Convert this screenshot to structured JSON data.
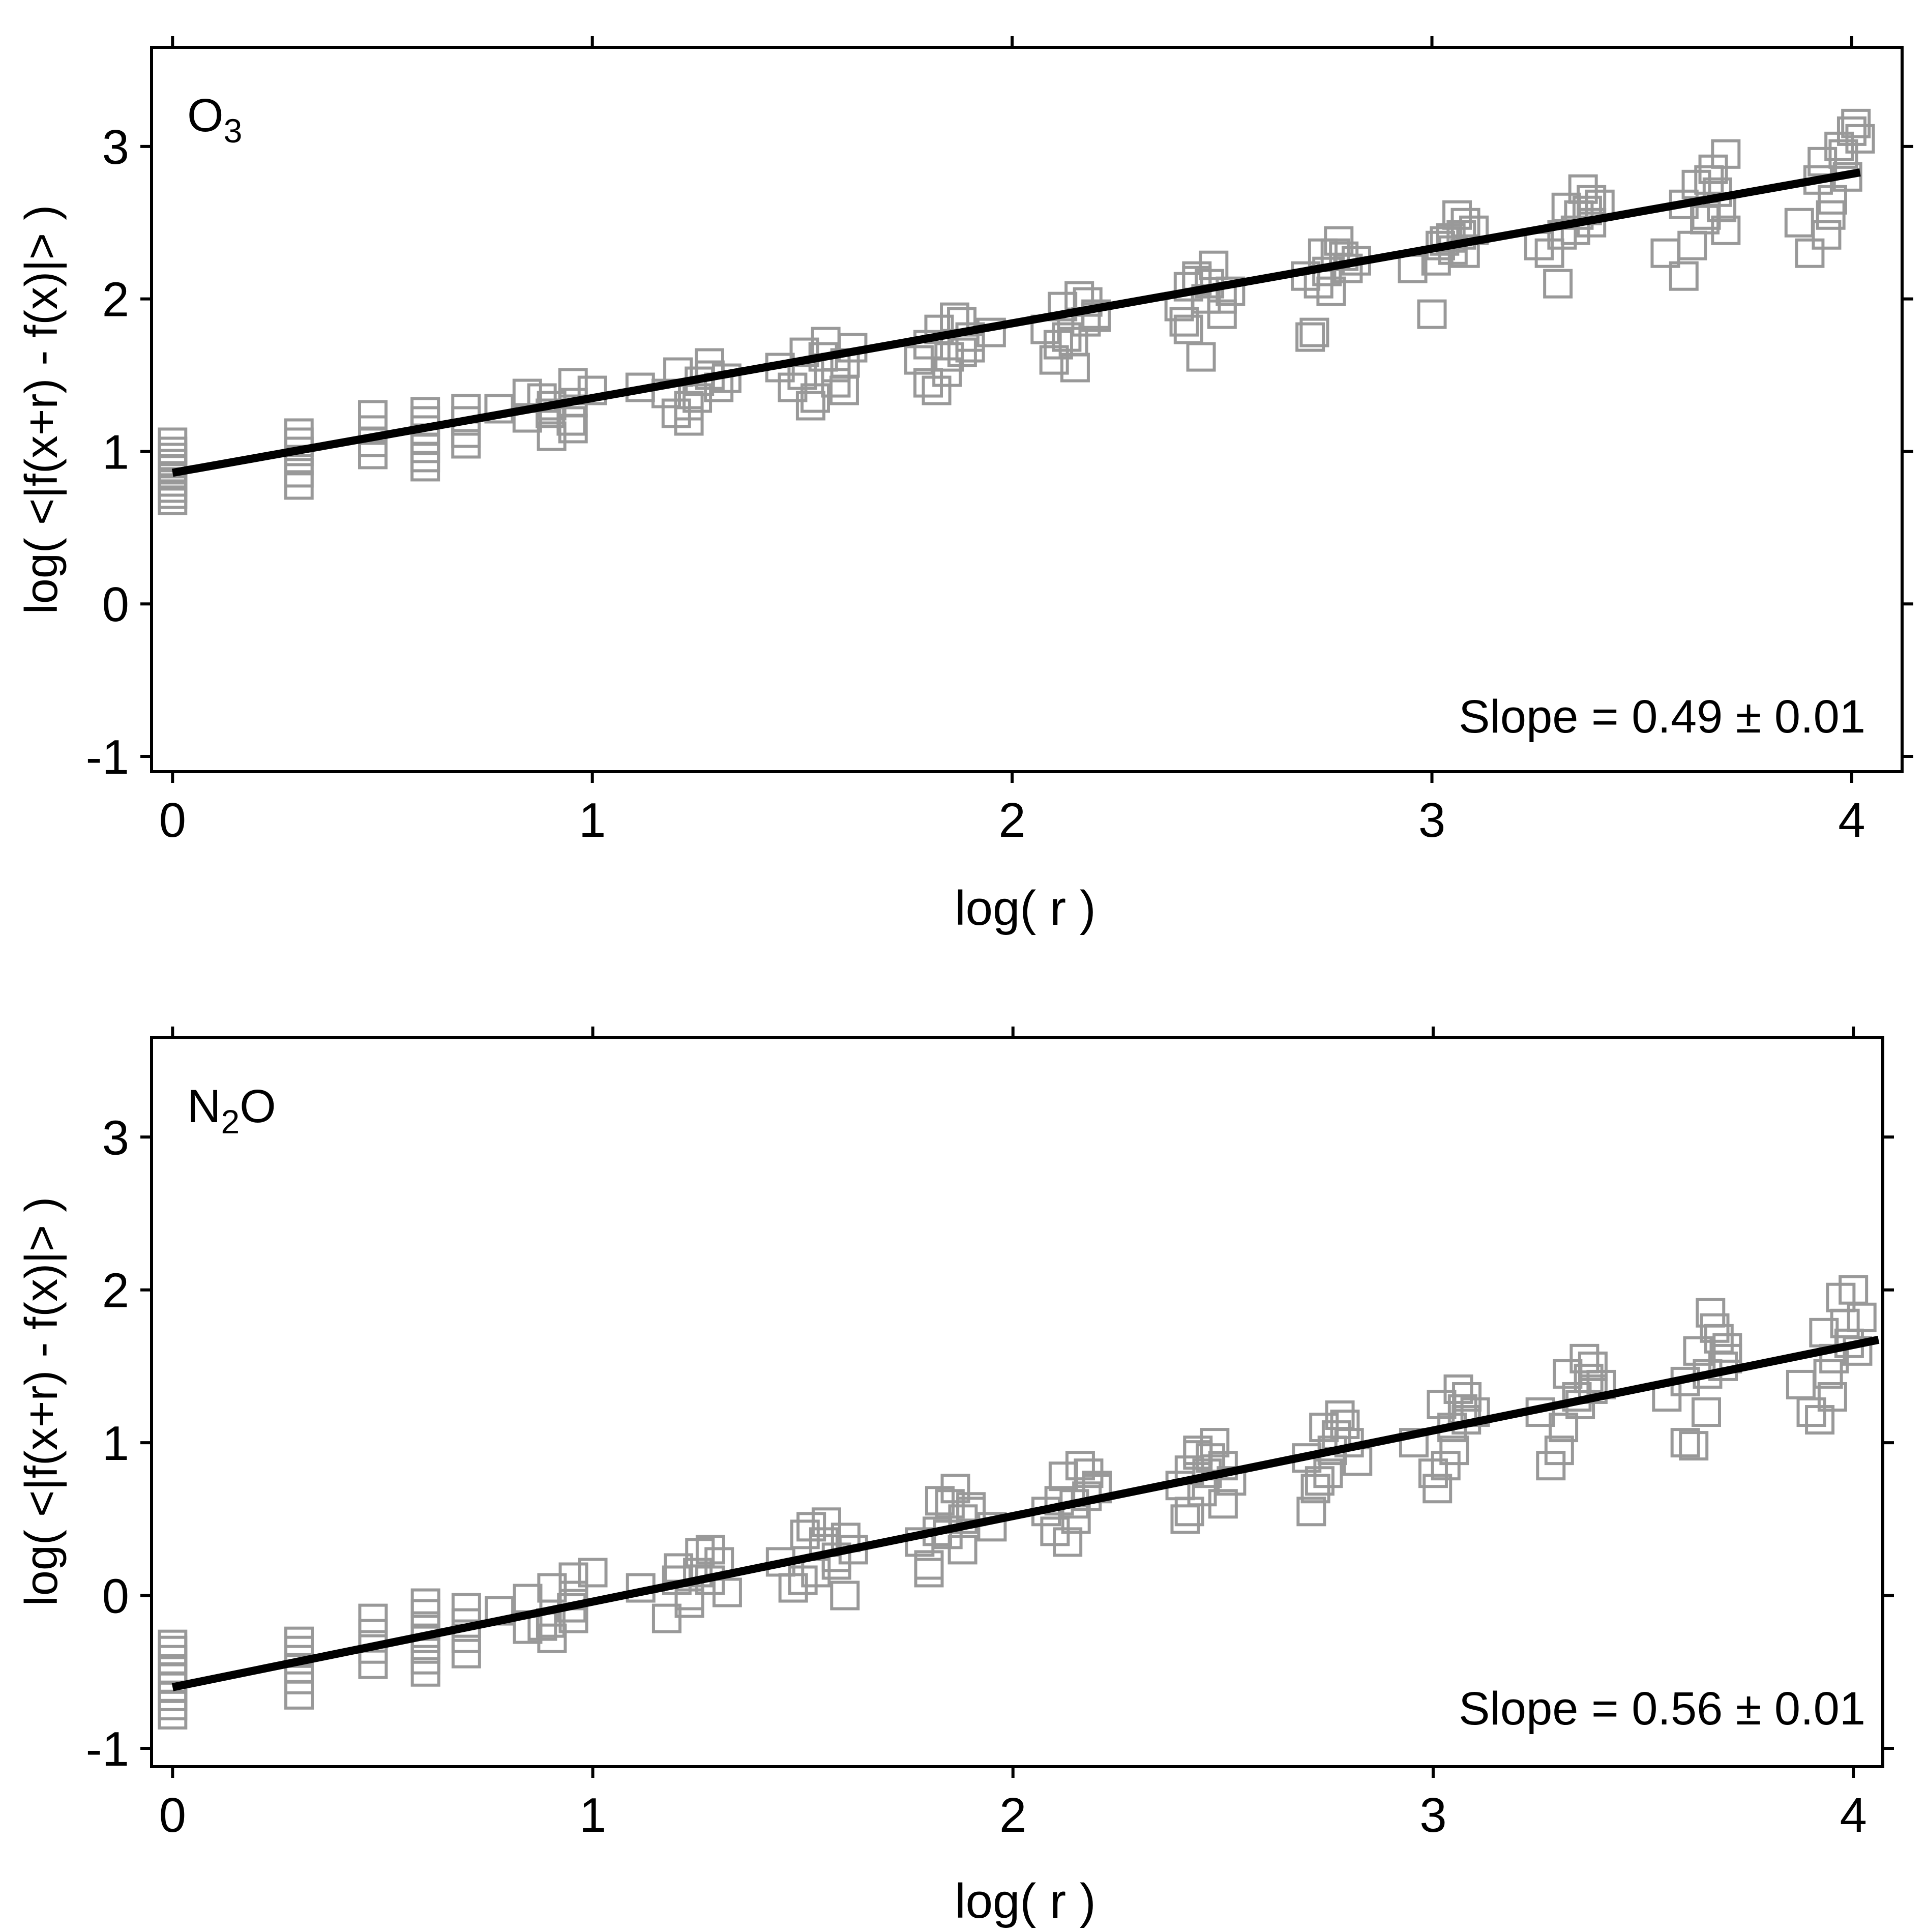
{
  "chart_data": [
    {
      "type": "scatter",
      "panel": "top",
      "label": {
        "main": "O",
        "sub": "3",
        "tail": ""
      },
      "annotation": "Slope = 0.49 ± 0.01",
      "xlabel": "log( r )",
      "ylabel": "log( <|f(x+r) - f(x)|> )",
      "xlim": [
        -0.05,
        4.12
      ],
      "ylim": [
        -1.1,
        3.65
      ],
      "xticks": [
        0,
        1,
        2,
        3,
        4
      ],
      "yticks": [
        -1,
        0,
        1,
        2,
        3
      ],
      "fit": {
        "slope": 0.49,
        "intercept": 0.86,
        "x_range": [
          0,
          4.02
        ]
      },
      "marker_color": "#999999",
      "line_color": "#000000",
      "series": [
        {
          "name": "observations",
          "x": [
            0,
            0,
            0,
            0,
            0,
            0,
            0,
            0,
            0,
            0,
            0.301,
            0.301,
            0.301,
            0.301,
            0.301,
            0.301,
            0.477,
            0.477,
            0.477,
            0.477,
            0.602,
            0.602,
            0.602,
            0.602,
            0.602,
            0.602,
            0.602,
            0.699,
            0.699,
            0.699,
            0.699,
            0.778,
            0.845,
            0.845,
            0.903,
            0.903,
            0.954,
            0.954,
            0.954,
            0.9,
            0.95,
            1.0,
            0.88,
            1.114,
            1.176,
            1.204,
            1.23,
            1.255,
            1.279,
            1.301,
            1.23,
            1.2,
            1.28,
            1.32,
            1.25,
            1.447,
            1.477,
            1.505,
            1.531,
            1.556,
            1.58,
            1.602,
            1.62,
            1.5,
            1.55,
            1.6,
            1.52,
            1.58,
            1.778,
            1.8,
            1.826,
            1.845,
            1.863,
            1.881,
            1.9,
            1.95,
            1.8,
            1.85,
            1.88,
            1.82,
            1.9,
            2.079,
            2.1,
            2.12,
            2.146,
            2.16,
            2.176,
            2.2,
            2.15,
            2.13,
            2.18,
            2.11,
            2.2,
            2.398,
            2.42,
            2.44,
            2.462,
            2.48,
            2.5,
            2.52,
            2.45,
            2.41,
            2.47,
            2.5,
            2.42,
            2.44,
            2.699,
            2.72,
            2.74,
            2.76,
            2.778,
            2.8,
            2.82,
            2.75,
            2.71,
            2.77,
            2.73,
            2.79,
            2.954,
            3.0,
            3.02,
            3.045,
            3.06,
            3.079,
            3.1,
            3.05,
            3.01,
            3.08,
            3.03,
            3.07,
            3.255,
            3.3,
            3.32,
            3.342,
            3.36,
            3.38,
            3.4,
            3.35,
            3.28,
            3.38,
            3.31,
            3.37,
            3.556,
            3.6,
            3.63,
            3.653,
            3.67,
            3.69,
            3.7,
            3.65,
            3.62,
            3.68,
            3.6,
            3.7,
            3.66,
            3.875,
            3.9,
            3.93,
            3.954,
            3.97,
            3.99,
            4.02,
            3.95,
            3.92,
            4.0,
            3.94,
            3.98,
            4.01
          ],
          "y": [
            0.68,
            0.72,
            0.76,
            0.8,
            0.84,
            0.88,
            0.92,
            0.96,
            1.0,
            1.06,
            0.78,
            0.86,
            0.94,
            1.0,
            1.06,
            1.12,
            0.98,
            1.06,
            1.14,
            1.24,
            0.9,
            0.96,
            1.02,
            1.08,
            1.14,
            1.2,
            1.26,
            1.05,
            1.12,
            1.2,
            1.28,
            1.28,
            1.22,
            1.38,
            1.1,
            1.3,
            1.15,
            1.32,
            1.45,
            1.25,
            1.2,
            1.4,
            1.35,
            1.42,
            1.38,
            1.52,
            1.2,
            1.46,
            1.58,
            1.42,
            1.3,
            1.25,
            1.5,
            1.48,
            1.35,
            1.55,
            1.42,
            1.65,
            1.35,
            1.72,
            1.45,
            1.58,
            1.68,
            1.5,
            1.62,
            1.4,
            1.3,
            1.55,
            1.6,
            1.45,
            1.8,
            1.52,
            1.88,
            1.65,
            1.75,
            1.78,
            1.7,
            1.62,
            1.85,
            1.4,
            1.68,
            1.8,
            1.6,
            1.95,
            1.72,
            2.02,
            1.85,
            1.9,
            1.55,
            1.75,
            1.98,
            1.7,
            1.88,
            1.95,
            1.8,
            2.15,
            2.0,
            2.22,
            1.9,
            2.05,
            1.62,
            1.85,
            2.1,
            2.0,
            2.08,
            2.12,
            2.15,
            1.78,
            2.3,
            2.05,
            2.38,
            2.2,
            2.25,
            2.18,
            1.75,
            2.3,
            2.1,
            2.28,
            2.2,
            1.9,
            2.35,
            2.4,
            2.55,
            2.3,
            2.45,
            2.32,
            2.25,
            2.5,
            2.38,
            2.42,
            2.35,
            2.1,
            2.6,
            2.45,
            2.72,
            2.5,
            2.62,
            2.55,
            2.3,
            2.65,
            2.42,
            2.58,
            2.3,
            2.15,
            2.75,
            2.55,
            2.85,
            2.6,
            2.95,
            2.52,
            2.35,
            2.7,
            2.62,
            2.45,
            2.78,
            2.5,
            2.3,
            2.9,
            2.65,
            3.0,
            2.8,
            3.05,
            2.55,
            2.78,
            3.1,
            2.42,
            2.95,
            3.15
          ]
        }
      ]
    },
    {
      "type": "scatter",
      "panel": "bottom",
      "label": {
        "main": "N",
        "sub": "2",
        "tail": "O"
      },
      "annotation": "Slope = 0.56 ± 0.01",
      "xlabel": "log( r )",
      "ylabel": "log( <|f(x+r) - f(x)|> )",
      "xlim": [
        -0.05,
        4.07
      ],
      "ylim": [
        -1.12,
        3.65
      ],
      "xticks": [
        0,
        1,
        2,
        3,
        4
      ],
      "yticks": [
        -1,
        0,
        1,
        2,
        3
      ],
      "fit": {
        "slope": 0.56,
        "intercept": -0.6,
        "x_range": [
          0,
          4.06
        ]
      },
      "marker_color": "#999999",
      "line_color": "#000000",
      "series": [
        {
          "name": "observations",
          "x": [
            0,
            0,
            0,
            0,
            0,
            0,
            0,
            0,
            0,
            0.301,
            0.301,
            0.301,
            0.301,
            0.301,
            0.301,
            0.477,
            0.477,
            0.477,
            0.477,
            0.602,
            0.602,
            0.602,
            0.602,
            0.602,
            0.602,
            0.602,
            0.699,
            0.699,
            0.699,
            0.699,
            0.778,
            0.845,
            0.845,
            0.903,
            0.903,
            0.954,
            0.954,
            0.954,
            0.9,
            0.95,
            1.0,
            0.88,
            1.114,
            1.176,
            1.204,
            1.23,
            1.255,
            1.279,
            1.301,
            1.23,
            1.2,
            1.28,
            1.32,
            1.25,
            1.447,
            1.477,
            1.505,
            1.531,
            1.556,
            1.58,
            1.602,
            1.62,
            1.5,
            1.55,
            1.6,
            1.52,
            1.58,
            1.778,
            1.8,
            1.826,
            1.845,
            1.863,
            1.881,
            1.9,
            1.95,
            1.8,
            1.85,
            1.88,
            1.82,
            1.9,
            2.079,
            2.1,
            2.12,
            2.146,
            2.16,
            2.176,
            2.2,
            2.15,
            2.13,
            2.18,
            2.11,
            2.2,
            2.398,
            2.42,
            2.44,
            2.462,
            2.48,
            2.5,
            2.52,
            2.45,
            2.41,
            2.47,
            2.5,
            2.42,
            2.44,
            2.699,
            2.72,
            2.74,
            2.76,
            2.778,
            2.8,
            2.82,
            2.75,
            2.71,
            2.77,
            2.73,
            2.79,
            2.954,
            3.0,
            3.02,
            3.045,
            3.06,
            3.079,
            3.1,
            3.05,
            3.01,
            3.08,
            3.03,
            3.07,
            3.255,
            3.3,
            3.32,
            3.342,
            3.36,
            3.38,
            3.4,
            3.35,
            3.28,
            3.38,
            3.31,
            3.37,
            3.556,
            3.6,
            3.63,
            3.653,
            3.67,
            3.69,
            3.7,
            3.65,
            3.62,
            3.68,
            3.6,
            3.7,
            3.66,
            3.875,
            3.9,
            3.93,
            3.954,
            3.97,
            3.99,
            4.02,
            3.95,
            3.92,
            4.0,
            3.94,
            3.98,
            4.01
          ],
          "y": [
            -0.78,
            -0.72,
            -0.66,
            -0.6,
            -0.54,
            -0.48,
            -0.42,
            -0.36,
            -0.32,
            -0.65,
            -0.55,
            -0.48,
            -0.42,
            -0.36,
            -0.3,
            -0.45,
            -0.35,
            -0.25,
            -0.15,
            -0.5,
            -0.42,
            -0.35,
            -0.28,
            -0.2,
            -0.12,
            -0.05,
            -0.38,
            -0.28,
            -0.18,
            -0.08,
            -0.1,
            -0.22,
            -0.02,
            -0.28,
            0.05,
            -0.15,
            0.0,
            0.12,
            -0.18,
            -0.08,
            0.15,
            -0.2,
            0.05,
            -0.15,
            0.18,
            0.0,
            0.28,
            0.1,
            0.22,
            -0.05,
            0.1,
            0.3,
            0.02,
            0.15,
            0.22,
            0.05,
            0.4,
            0.15,
            0.48,
            0.25,
            0.38,
            0.3,
            0.1,
            0.35,
            0.0,
            0.45,
            0.2,
            0.35,
            0.2,
            0.62,
            0.4,
            0.7,
            0.5,
            0.55,
            0.45,
            0.15,
            0.6,
            0.3,
            0.42,
            0.58,
            0.55,
            0.42,
            0.78,
            0.6,
            0.85,
            0.65,
            0.72,
            0.5,
            0.35,
            0.8,
            0.62,
            0.7,
            0.72,
            0.55,
            0.92,
            0.8,
            1.0,
            0.85,
            0.75,
            0.68,
            0.5,
            0.9,
            0.6,
            0.82,
            0.95,
            0.9,
            0.7,
            1.1,
            0.95,
            1.18,
            1.0,
            0.88,
            0.8,
            0.55,
            1.05,
            0.75,
            1.12,
            1.0,
            0.8,
            1.25,
            1.1,
            1.35,
            1.15,
            1.2,
            0.95,
            0.7,
            1.3,
            0.85,
            1.22,
            1.2,
            0.95,
            1.45,
            1.3,
            1.55,
            1.35,
            1.38,
            1.25,
            0.85,
            1.5,
            1.1,
            1.42,
            1.3,
            1.0,
            1.6,
            1.45,
            1.75,
            1.5,
            1.62,
            1.2,
            0.98,
            1.68,
            1.4,
            1.55,
            1.85,
            1.38,
            1.2,
            1.72,
            1.55,
            1.95,
            1.65,
            1.82,
            1.3,
            1.15,
            2.0,
            1.45,
            1.78,
            1.6
          ]
        }
      ]
    }
  ]
}
